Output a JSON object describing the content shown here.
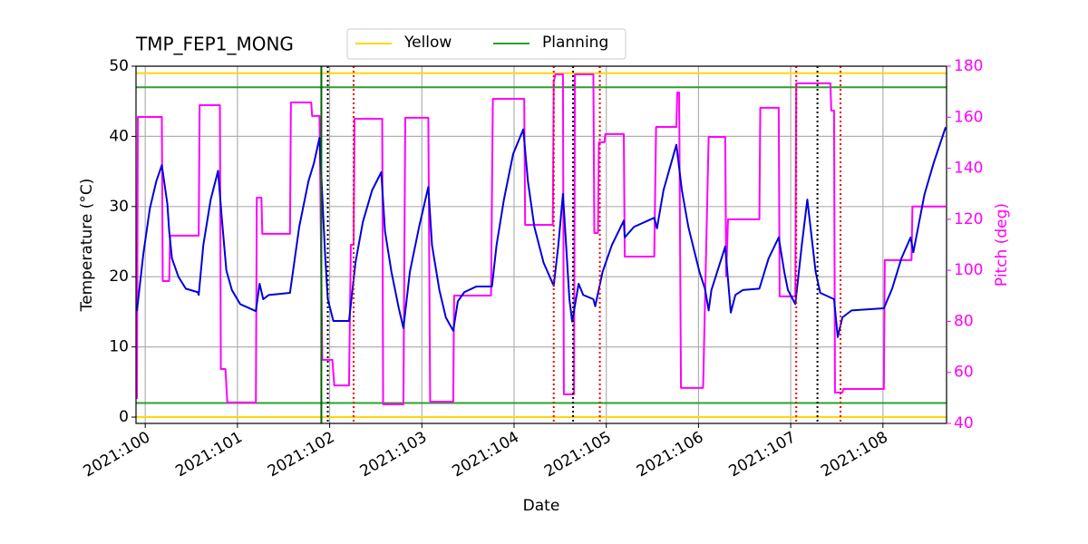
{
  "chart_data": {
    "type": "line",
    "title": "TMP_FEP1_MONG",
    "x_label": "Date",
    "y_label": "Temperature (°C)",
    "y2_label": "Pitch (deg)",
    "y2_color": "#ff00ff",
    "grid": true,
    "legend": "top",
    "xlim": [
      99.9,
      108.69
    ],
    "xticks": [
      {
        "value": 100,
        "label": "2021:100"
      },
      {
        "value": 101,
        "label": "2021:101"
      },
      {
        "value": 102,
        "label": "2021:102"
      },
      {
        "value": 103,
        "label": "2021:103"
      },
      {
        "value": 104,
        "label": "2021:104"
      },
      {
        "value": 105,
        "label": "2021:105"
      },
      {
        "value": 106,
        "label": "2021:106"
      },
      {
        "value": 107,
        "label": "2021:107"
      },
      {
        "value": 108,
        "label": "2021:108"
      }
    ],
    "ylim": [
      -0.9,
      50
    ],
    "yticks": [
      0,
      10,
      20,
      30,
      40,
      50
    ],
    "y2lim": [
      40,
      180
    ],
    "y2ticks": [
      40,
      60,
      80,
      100,
      120,
      140,
      160,
      180
    ],
    "limit_lines": [
      {
        "name": "Yellow",
        "color": "#ffd700",
        "values": [
          49,
          0
        ]
      },
      {
        "name": "Planning",
        "color": "#2ca02c",
        "values": [
          47,
          2
        ]
      }
    ],
    "vertical_lines": [
      {
        "x": 101.91,
        "color": "#006400",
        "style": "solid"
      },
      {
        "x": 101.98,
        "color": "#000000",
        "style": "dotted"
      },
      {
        "x": 104.64,
        "color": "#000000",
        "style": "dotted"
      },
      {
        "x": 107.29,
        "color": "#000000",
        "style": "dotted"
      },
      {
        "x": 102.26,
        "color": "#ee0000",
        "style": "dotted"
      },
      {
        "x": 104.43,
        "color": "#ee0000",
        "style": "dotted"
      },
      {
        "x": 104.93,
        "color": "#ee0000",
        "style": "dotted"
      },
      {
        "x": 107.06,
        "color": "#ee0000",
        "style": "dotted"
      },
      {
        "x": 107.54,
        "color": "#ee0000",
        "style": "dotted"
      }
    ],
    "series": [
      {
        "color": "#ff00ff",
        "axis": "y2",
        "x": [
          99.91,
          99.92,
          100.18,
          100.19,
          100.26,
          100.27,
          100.58,
          100.59,
          100.81,
          100.82,
          100.87,
          100.89,
          101.2,
          101.21,
          101.26,
          101.27,
          101.57,
          101.58,
          101.8,
          101.81,
          101.89,
          101.92,
          102.03,
          102.05,
          102.21,
          102.23,
          102.26,
          102.27,
          102.57,
          102.58,
          102.8,
          102.82,
          103.07,
          103.09,
          103.34,
          103.35,
          103.75,
          103.77,
          104.11,
          104.12,
          104.42,
          104.43,
          104.45,
          104.53,
          104.54,
          104.65,
          104.66,
          104.86,
          104.87,
          104.91,
          104.92,
          104.98,
          104.99,
          105.19,
          105.2,
          105.52,
          105.54,
          105.76,
          105.77,
          105.79,
          105.81,
          106.05,
          106.11,
          106.29,
          106.3,
          106.32,
          106.66,
          106.67,
          106.87,
          106.88,
          107.05,
          107.06,
          107.43,
          107.44,
          107.47,
          107.48,
          107.56,
          107.57,
          108.01,
          108.02,
          108.31,
          108.32,
          108.68
        ],
        "values": [
          49.6,
          160.1,
          160.1,
          95.8,
          95.8,
          113.6,
          113.6,
          164.7,
          164.7,
          61.3,
          61.3,
          48.2,
          48.2,
          128.5,
          128.5,
          114.3,
          114.3,
          165.8,
          165.8,
          160.5,
          160.5,
          64.9,
          64.9,
          54.9,
          54.9,
          110,
          110,
          159.4,
          159.4,
          47.5,
          47.5,
          159.8,
          159.8,
          48.5,
          48.5,
          90.1,
          90.1,
          167.2,
          167.2,
          117.8,
          117.8,
          174,
          176.8,
          176.8,
          51.4,
          51.4,
          176.8,
          176.8,
          114.6,
          114.6,
          150.2,
          150.2,
          153.4,
          153.4,
          105.4,
          105.4,
          156.2,
          156.2,
          169.7,
          169.7,
          53.9,
          53.9,
          152.3,
          152.3,
          97.6,
          120,
          120,
          163.7,
          163.7,
          89.8,
          89.8,
          173.3,
          173.3,
          162.6,
          162.6,
          52.1,
          52.1,
          53.5,
          53.5,
          104,
          104,
          125,
          125
        ]
      },
      {
        "color": "#0000dd",
        "x": [
          99.91,
          99.98,
          100.05,
          100.12,
          100.18,
          100.24,
          100.26,
          100.29,
          100.36,
          100.44,
          100.57,
          100.58,
          100.63,
          100.71,
          100.79,
          100.83,
          100.88,
          100.94,
          101.03,
          101.2,
          101.24,
          101.28,
          101.34,
          101.57,
          101.67,
          101.77,
          101.83,
          101.89,
          101.95,
          101.98,
          102.04,
          102.21,
          102.28,
          102.36,
          102.46,
          102.56,
          102.6,
          102.67,
          102.75,
          102.8,
          102.87,
          102.97,
          103.07,
          103.11,
          103.19,
          103.26,
          103.34,
          103.39,
          103.46,
          103.59,
          103.76,
          103.81,
          103.89,
          103.99,
          104.1,
          104.15,
          104.22,
          104.32,
          104.43,
          104.48,
          104.53,
          104.57,
          104.6,
          104.63,
          104.7,
          104.75,
          104.86,
          104.88,
          104.96,
          105.06,
          105.19,
          105.2,
          105.3,
          105.52,
          105.55,
          105.62,
          105.76,
          105.82,
          105.89,
          106.01,
          106.07,
          106.11,
          106.14,
          106.29,
          106.35,
          106.4,
          106.48,
          106.66,
          106.76,
          106.87,
          106.93,
          106.97,
          107.05,
          107.12,
          107.18,
          107.27,
          107.32,
          107.47,
          107.51,
          107.56,
          107.66,
          108.01,
          108.1,
          108.2,
          108.3,
          108.33,
          108.45,
          108.55,
          108.68
        ],
        "values": [
          15.1,
          23.3,
          29.7,
          33.6,
          35.9,
          30.4,
          26.5,
          22.6,
          20,
          18.3,
          17.8,
          17.4,
          24.5,
          31,
          35.1,
          28.4,
          20.9,
          18.1,
          16.1,
          15.1,
          19,
          16.8,
          17.4,
          17.7,
          27.1,
          33.6,
          36.2,
          39.8,
          23.3,
          16.8,
          13.7,
          13.7,
          22,
          27.8,
          32.3,
          34.9,
          26.5,
          20.7,
          15.5,
          12.7,
          20.7,
          27.1,
          32.8,
          24.5,
          18.1,
          14.2,
          12.3,
          16.5,
          17.8,
          18.6,
          18.6,
          24.5,
          31,
          37.5,
          41,
          33.6,
          27.1,
          22,
          18.7,
          24.5,
          31.8,
          23.3,
          16.8,
          13.6,
          19,
          17.4,
          16.8,
          15.8,
          20.7,
          24.5,
          28,
          25.6,
          27.1,
          28.4,
          26.9,
          32.3,
          38.8,
          32.3,
          27.1,
          20.7,
          18.3,
          15.2,
          18.1,
          24.3,
          14.9,
          17.4,
          18.1,
          18.3,
          22.6,
          25.6,
          20.7,
          18.1,
          16.1,
          24.5,
          31,
          20.7,
          17.7,
          16.8,
          11.4,
          14.2,
          15.2,
          15.5,
          18.3,
          22.6,
          25.6,
          23.5,
          31.7,
          36.2,
          41.3
        ]
      }
    ]
  }
}
